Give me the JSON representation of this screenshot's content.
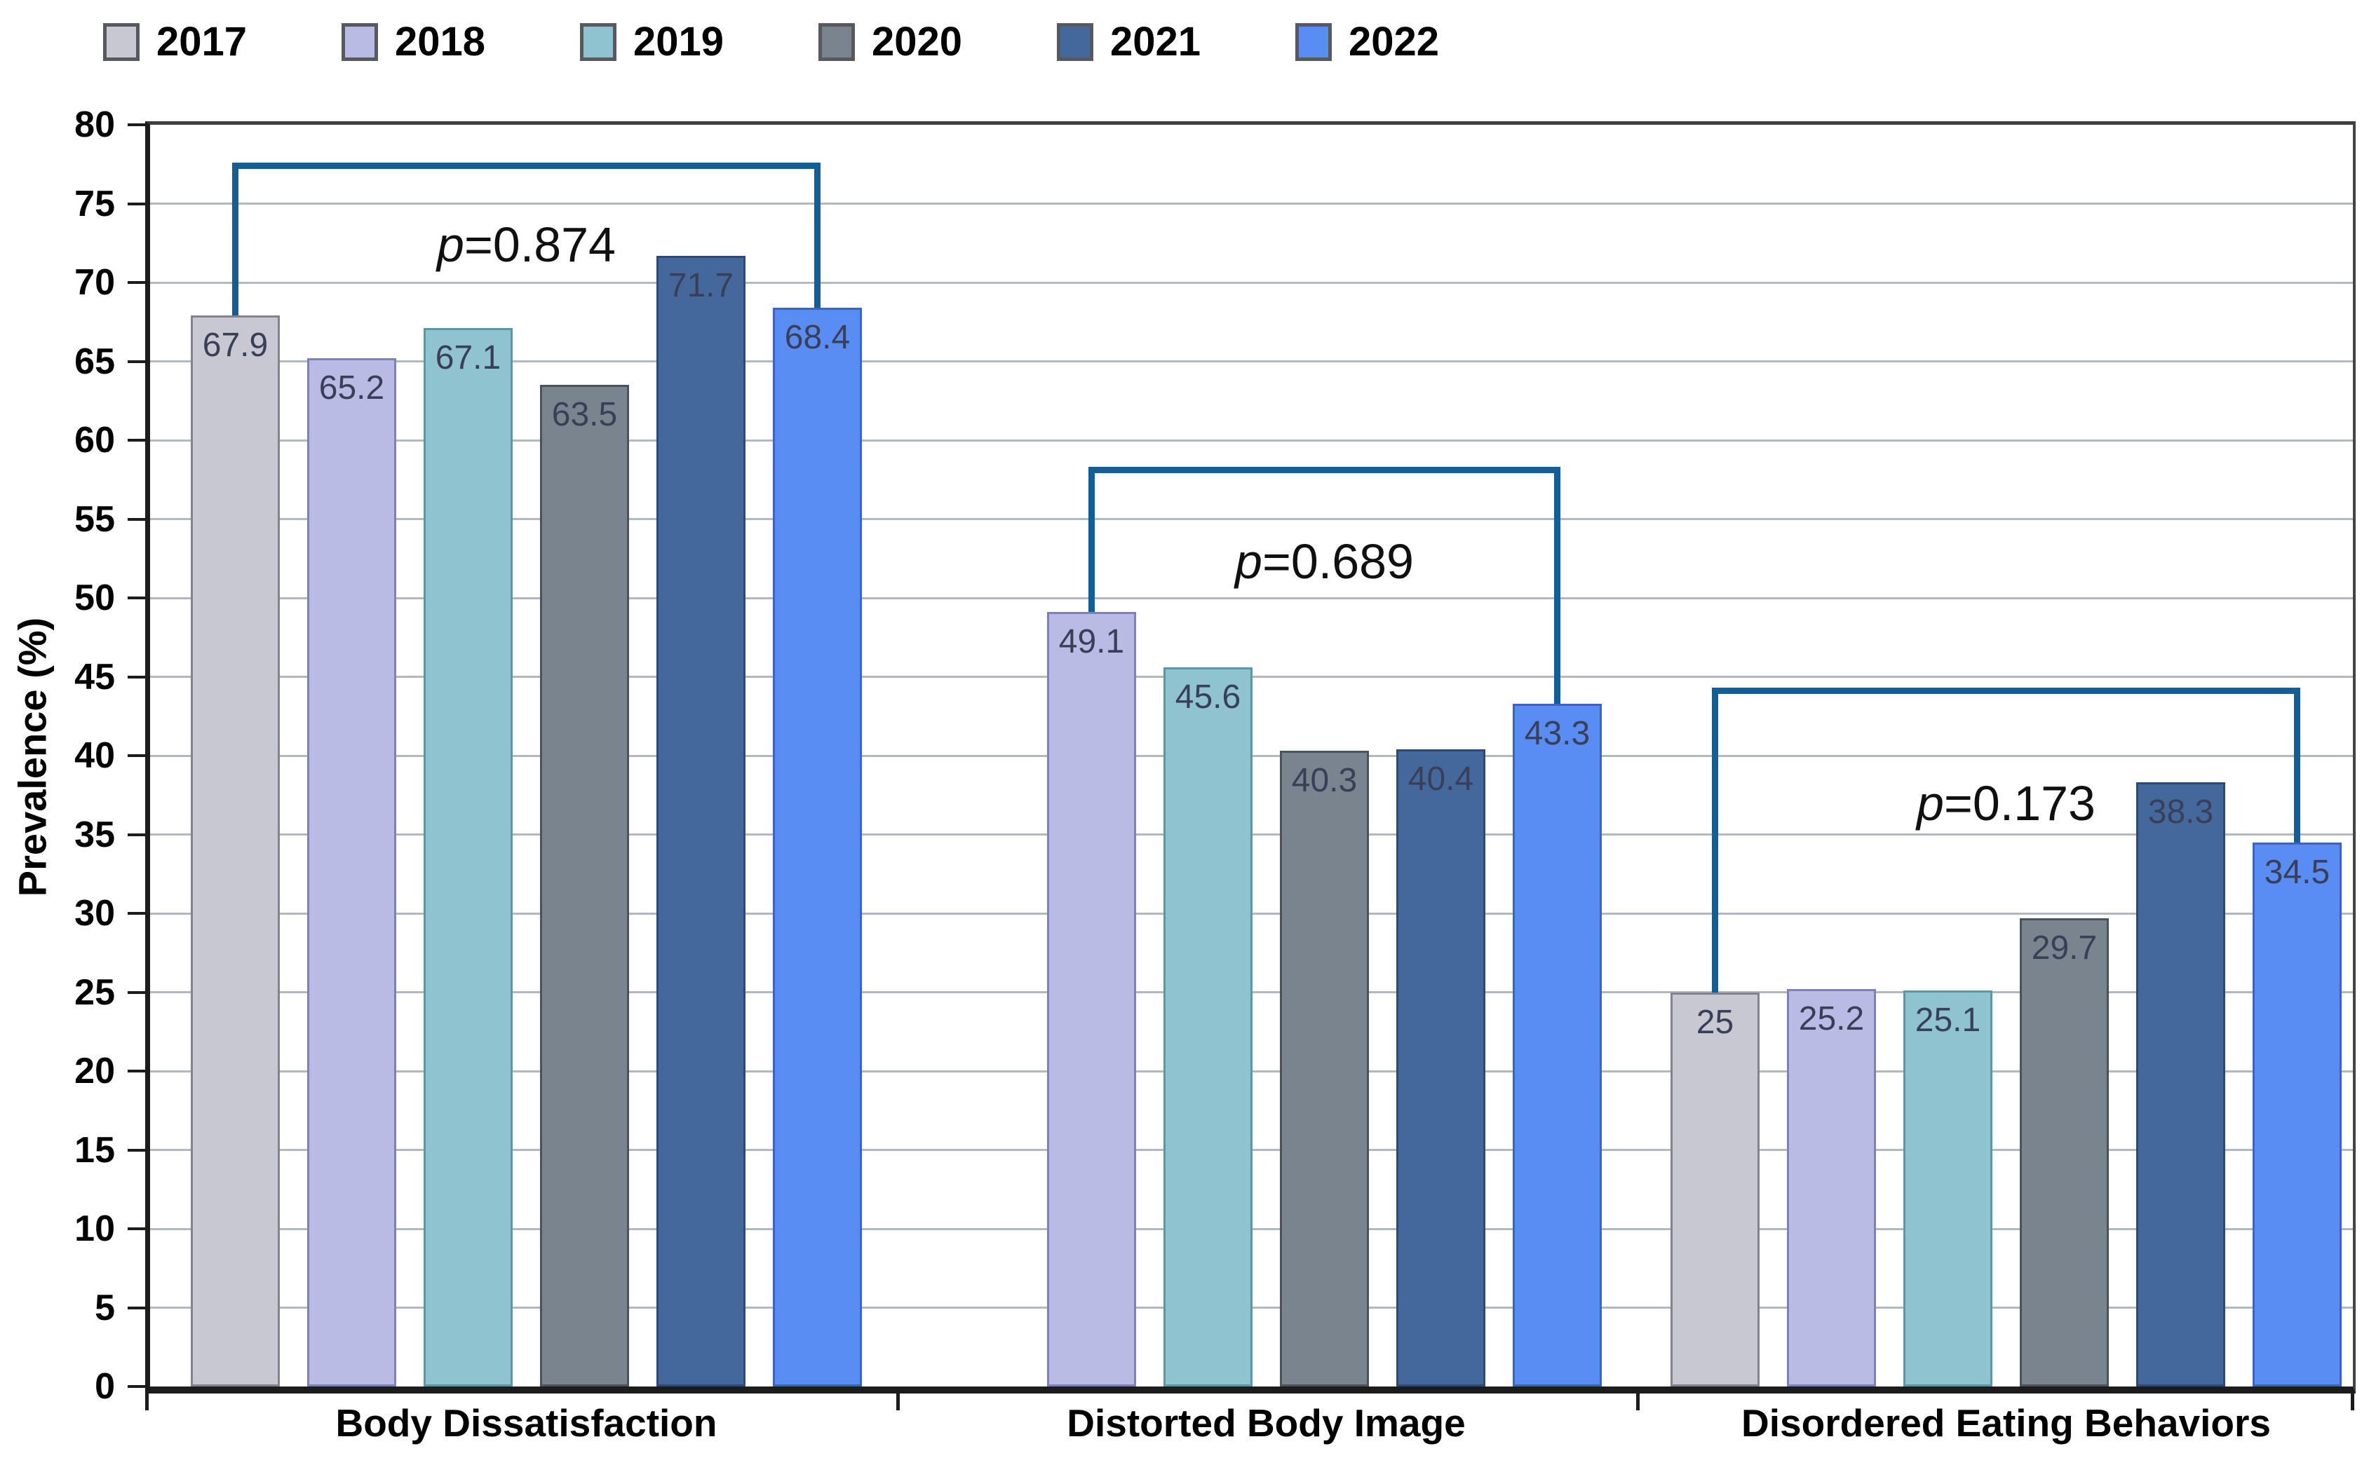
{
  "colors": {
    "background": "#ffffff",
    "gridline": "#b2b8bf",
    "axis": "#1c1c1c",
    "plot_border": "#3d3d3d",
    "bracket": "#135e96",
    "bar_value_label": "#3a3f58",
    "series": {
      "2017": {
        "fill": "#c7c8d2",
        "border": "#82838f"
      },
      "2018": {
        "filler": "",
        "fill": "#b9bbe4",
        "border": "#7d81b8"
      },
      "2019": {
        "fill": "#8fc3cf",
        "border": "#5d97a5"
      },
      "2020": {
        "fill": "#79848e",
        "border": "#4a525a"
      },
      "2021": {
        "fill": "#45689c",
        "border": "#2d4a77"
      },
      "2022": {
        "fill": "#5a8df4",
        "border": "#3a64c0"
      }
    }
  },
  "chart_data": {
    "type": "bar",
    "title": "",
    "xlabel": "",
    "ylabel": "Prevalence (%)",
    "ylim": [
      0,
      80
    ],
    "yticks": [
      0,
      5,
      10,
      15,
      20,
      25,
      30,
      35,
      40,
      45,
      50,
      55,
      60,
      65,
      70,
      75,
      80
    ],
    "grid": true,
    "legend_position": "top-left",
    "legend_labels": [
      "2017",
      "2018",
      "2019",
      "2020",
      "2021",
      "2022"
    ],
    "categories": [
      "Body Dissatisfaction",
      "Distorted Body Image",
      "Disordered Eating Behaviors"
    ],
    "series": [
      {
        "name": "2017",
        "values": [
          67.9,
          null,
          25
        ]
      },
      {
        "name": "2018",
        "values": [
          65.2,
          49.1,
          25.2
        ]
      },
      {
        "name": "2019",
        "values": [
          67.1,
          45.6,
          25.1
        ]
      },
      {
        "name": "2020",
        "values": [
          63.5,
          40.3,
          29.7
        ]
      },
      {
        "name": "2021",
        "values": [
          71.7,
          40.4,
          38.3
        ]
      },
      {
        "name": "2022",
        "values": [
          68.4,
          43.3,
          34.5
        ]
      }
    ],
    "annotations": [
      {
        "label": "p=0.874",
        "category_index": 0,
        "from_series": "2017",
        "to_series": "2022",
        "bracket_y": 77.6,
        "label_y": 72.4
      },
      {
        "label": "p=0.689",
        "category_index": 1,
        "from_series": "2018",
        "to_series": "2022",
        "bracket_y": 58.3,
        "label_y": 52.3
      },
      {
        "label": "p=0.173",
        "category_index": 2,
        "from_series": "2017",
        "to_series": "2022",
        "bracket_y": 44.3,
        "label_y": 37.0
      }
    ]
  }
}
